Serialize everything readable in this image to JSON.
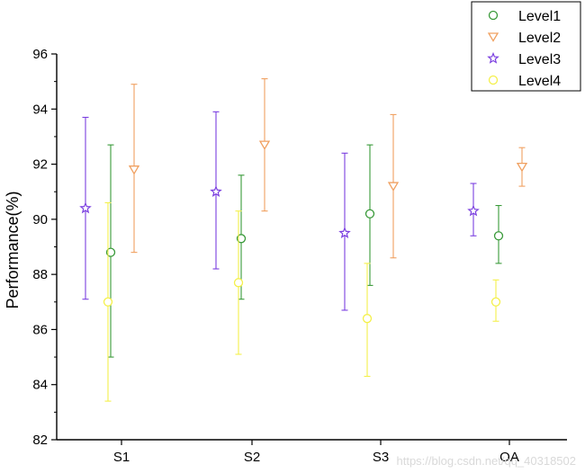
{
  "chart_data": {
    "type": "scatter",
    "subtype": "error-bar",
    "title": "",
    "xlabel": "",
    "ylabel": "Performance(%)",
    "ylim": [
      82,
      96
    ],
    "yticks": [
      82,
      84,
      86,
      88,
      90,
      92,
      94,
      96
    ],
    "categories": [
      "S1",
      "S2",
      "S3",
      "OA"
    ],
    "grid": false,
    "legend_position": "top-right",
    "series": [
      {
        "name": "Level1",
        "marker": "circle",
        "color": "#3a9a3a",
        "values": [
          88.8,
          89.3,
          90.2,
          89.4
        ],
        "lower": [
          85.0,
          87.1,
          87.6,
          88.4
        ],
        "upper": [
          92.7,
          91.6,
          92.7,
          90.5
        ]
      },
      {
        "name": "Level2",
        "marker": "triangle-down",
        "color": "#f0a060",
        "values": [
          91.8,
          92.7,
          91.2,
          91.9
        ],
        "lower": [
          88.8,
          90.3,
          88.6,
          91.2
        ],
        "upper": [
          94.9,
          95.1,
          93.8,
          92.6
        ]
      },
      {
        "name": "Level3",
        "marker": "star",
        "color": "#7b3fe0",
        "values": [
          90.4,
          91.0,
          89.5,
          90.3
        ],
        "lower": [
          87.1,
          88.2,
          86.7,
          89.4
        ],
        "upper": [
          93.7,
          93.9,
          92.4,
          91.3
        ]
      },
      {
        "name": "Level4",
        "marker": "circle",
        "color": "#f4f04a",
        "values": [
          87.0,
          87.7,
          86.4,
          87.0
        ],
        "lower": [
          83.4,
          85.1,
          84.3,
          86.3
        ],
        "upper": [
          90.6,
          90.3,
          88.4,
          87.8
        ]
      }
    ],
    "watermark": "https://blog.csdn.net/qq_40318502"
  }
}
